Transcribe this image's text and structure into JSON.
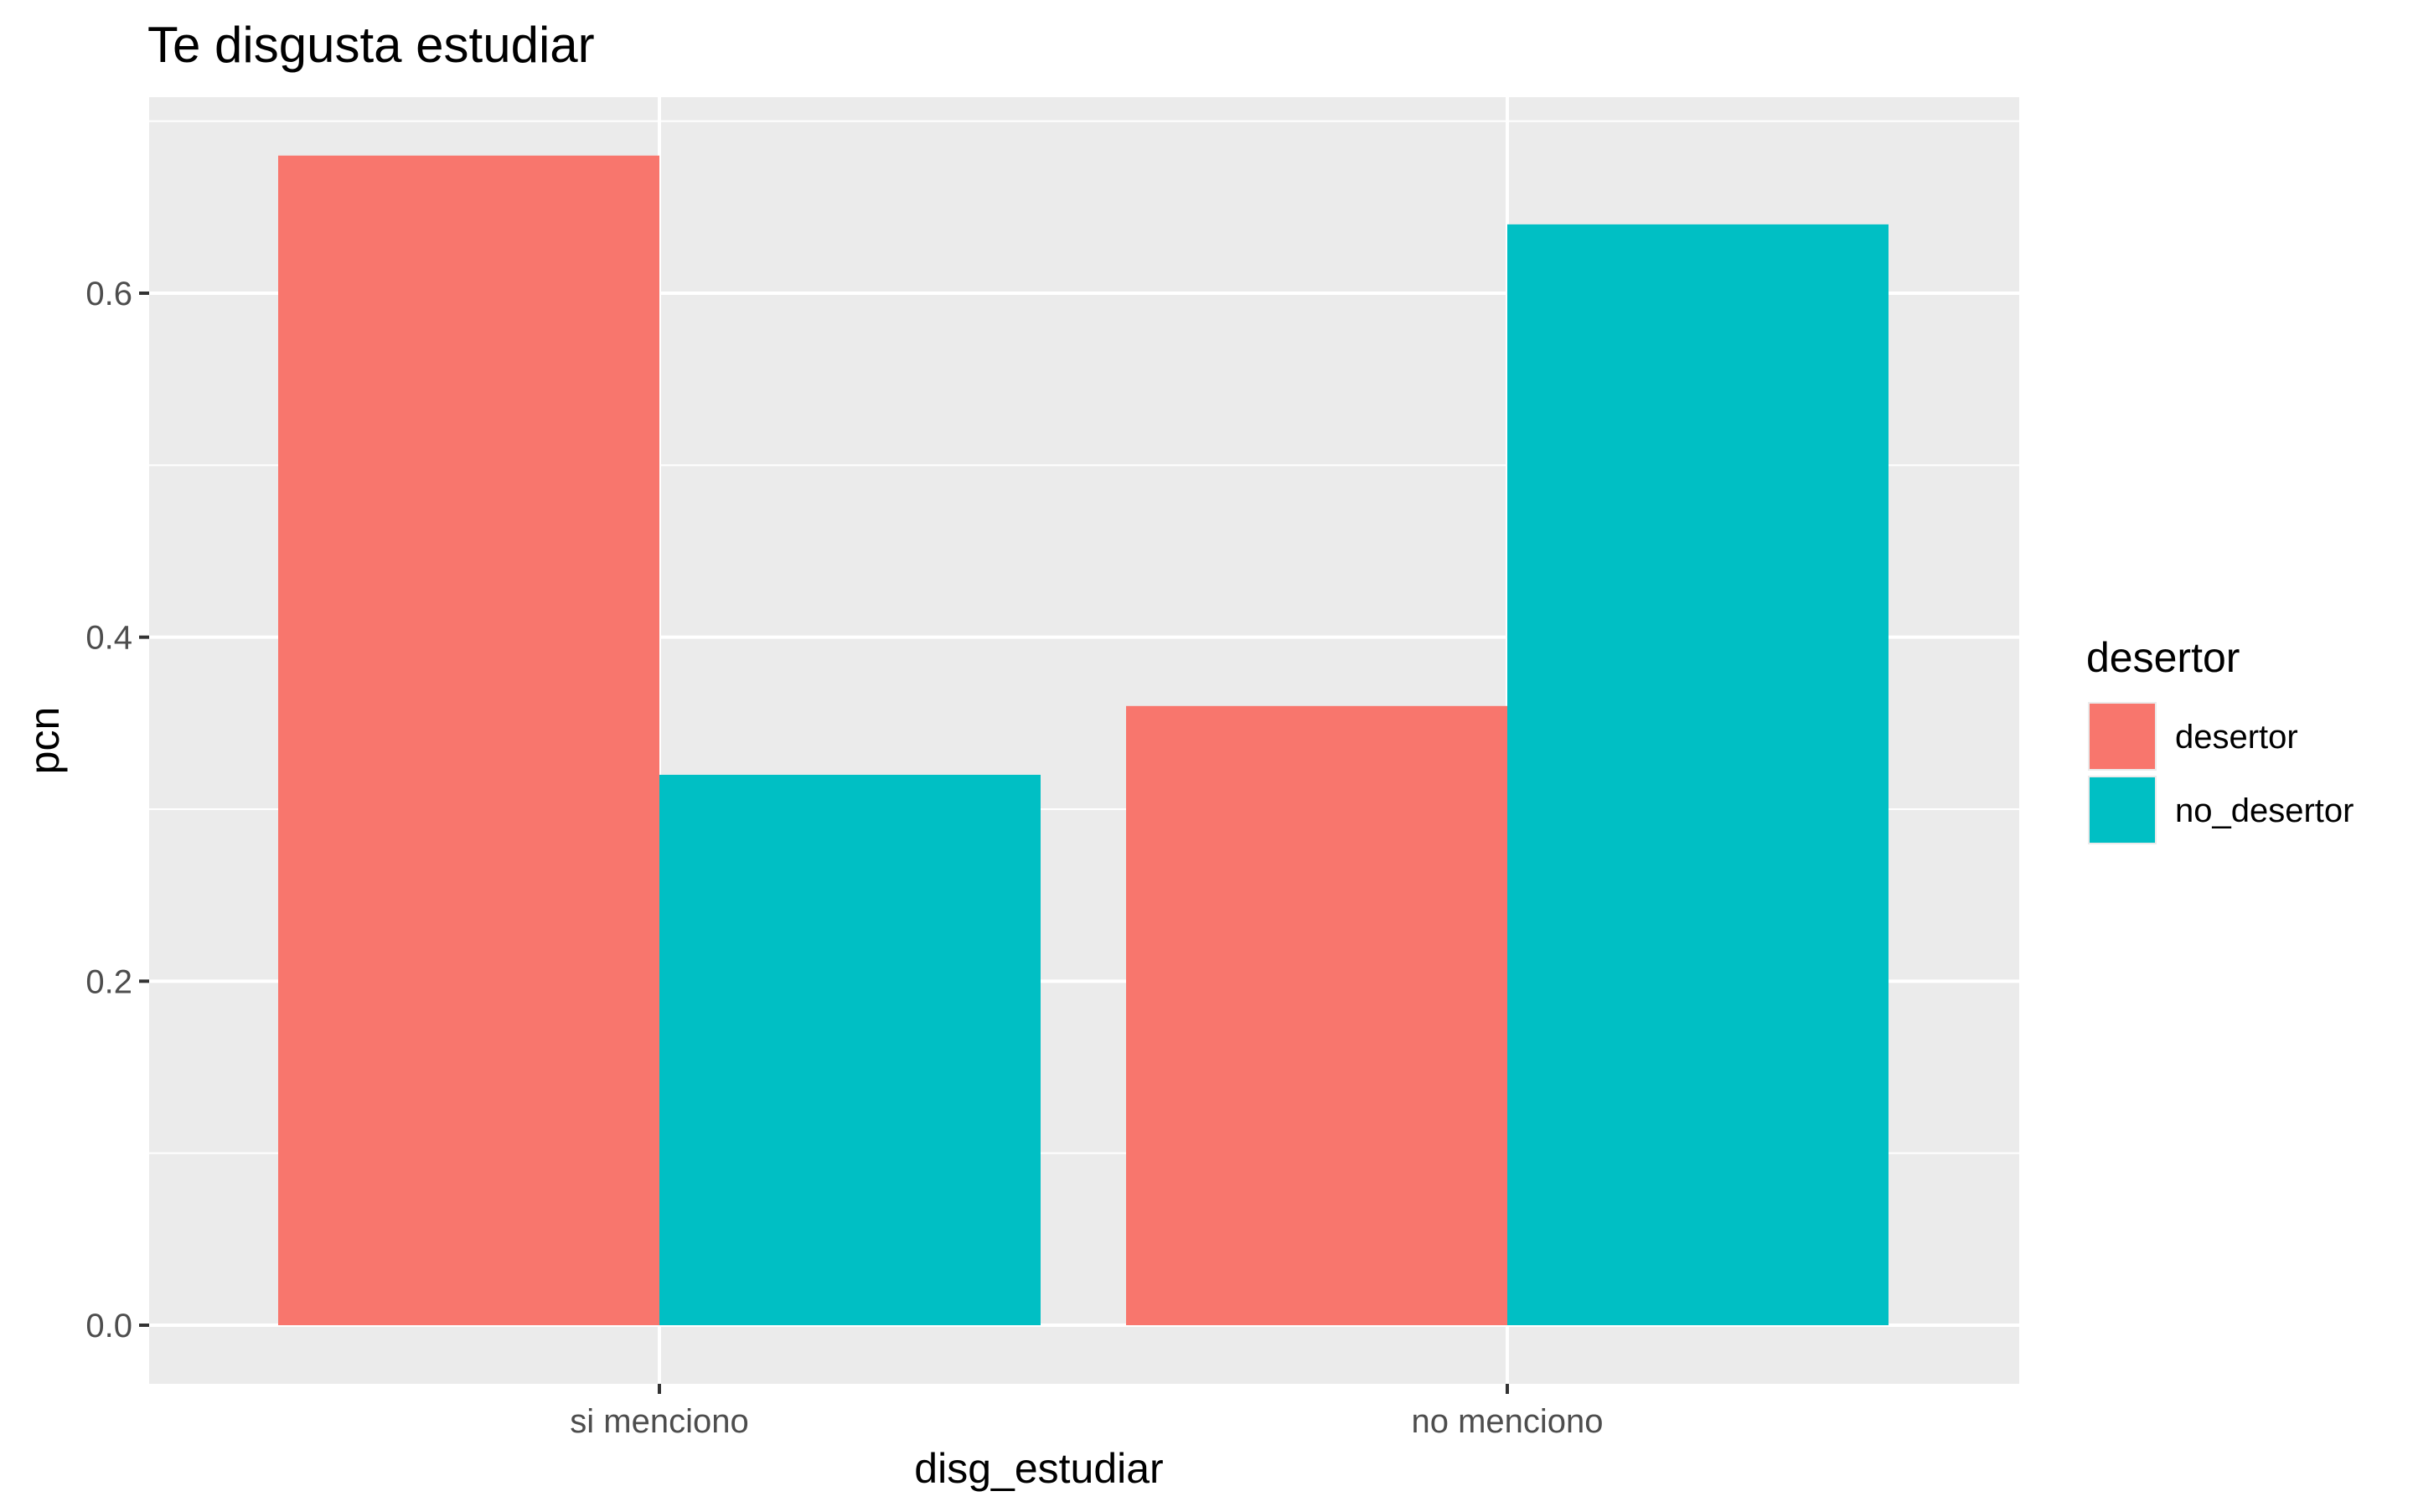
{
  "chart_data": {
    "type": "bar",
    "title": "Te disgusta estudiar",
    "xlabel": "disg_estudiar",
    "ylabel": "pcn",
    "categories": [
      "si menciono",
      "no menciono"
    ],
    "series": [
      {
        "name": "desertor",
        "values": [
          0.68,
          0.36
        ],
        "color": "#F8766D"
      },
      {
        "name": "no_desertor",
        "values": [
          0.32,
          0.64
        ],
        "color": "#00BFC4"
      }
    ],
    "ylim": [
      0.0,
      0.7
    ],
    "yticks": [
      {
        "value": 0.0,
        "label": "0.0"
      },
      {
        "value": 0.2,
        "label": "0.2"
      },
      {
        "value": 0.4,
        "label": "0.4"
      },
      {
        "value": 0.6,
        "label": "0.6"
      }
    ],
    "grid": true,
    "panel_background": "#EBEBEB",
    "legend": {
      "title": "desertor",
      "position": "right"
    }
  }
}
